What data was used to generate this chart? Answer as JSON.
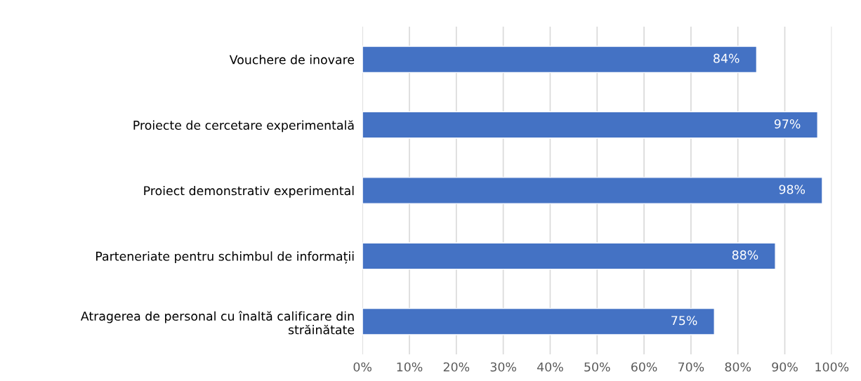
{
  "chart_data": {
    "type": "bar",
    "orientation": "horizontal",
    "categories": [
      "Vouchere de inovare",
      "Proiecte de cercetare experimentală",
      "Proiect demonstrativ experimental",
      "Parteneriate pentru schimbul de informații",
      "Atragerea de personal cu înaltă calificare din\nstrăinătate"
    ],
    "values": [
      84,
      97,
      98,
      88,
      75
    ],
    "color": "#4472c4",
    "value_labels": [
      "84%",
      "97%",
      "98%",
      "88%",
      "75%"
    ],
    "xlim": [
      0,
      100
    ],
    "xticks": [
      {
        "value": 0,
        "label": "0%"
      },
      {
        "value": 10,
        "label": "10%"
      },
      {
        "value": 20,
        "label": "20%"
      },
      {
        "value": 30,
        "label": "30%"
      },
      {
        "value": 40,
        "label": "40%"
      },
      {
        "value": 50,
        "label": "50%"
      },
      {
        "value": 60,
        "label": "60%"
      },
      {
        "value": 70,
        "label": "70%"
      },
      {
        "value": 80,
        "label": "80%"
      },
      {
        "value": 90,
        "label": "90%"
      },
      {
        "value": 100,
        "label": "100%"
      }
    ],
    "grid": "x",
    "legend": false
  }
}
